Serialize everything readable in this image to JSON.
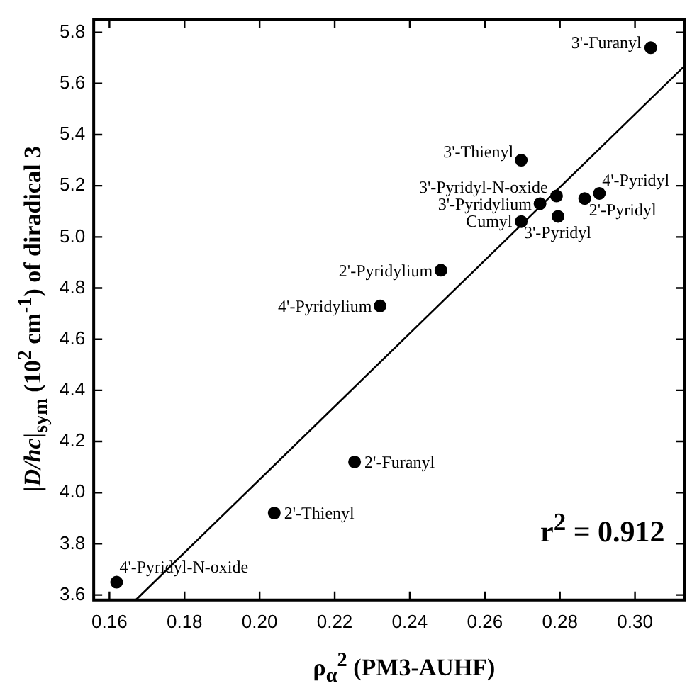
{
  "chart_data": {
    "type": "scatter",
    "xlabel": "ρ$_{α}$$^{2}$ (PM3-AUHF)",
    "ylabel": "|D/hc|$_{sym}$ (10$^{2}$ cm$^{-1}$) of diradical 3",
    "xlim": [
      0.1558,
      0.3133
    ],
    "xticks": [
      {
        "value": 0.16,
        "label": "0.16"
      },
      {
        "value": 0.18,
        "label": "0.18"
      },
      {
        "value": 0.2,
        "label": "0.20"
      },
      {
        "value": 0.22,
        "label": "0.22"
      },
      {
        "value": 0.24,
        "label": "0.24"
      },
      {
        "value": 0.26,
        "label": "0.26"
      },
      {
        "value": 0.28,
        "label": "0.28"
      },
      {
        "value": 0.3,
        "label": "0.30"
      }
    ],
    "ylim": [
      3.58,
      5.85
    ],
    "yticks": [
      {
        "value": 3.6,
        "label": "3.6"
      },
      {
        "value": 3.8,
        "label": "3.8"
      },
      {
        "value": 4,
        "label": "4.0"
      },
      {
        "value": 4.2,
        "label": "4.2"
      },
      {
        "value": 4.4,
        "label": "4.4"
      },
      {
        "value": 4.6,
        "label": "4.6"
      },
      {
        "value": 4.8,
        "label": "4.8"
      },
      {
        "value": 5,
        "label": "5.0"
      },
      {
        "value": 5.2,
        "label": "5.2"
      },
      {
        "value": 5.4,
        "label": "5.4"
      },
      {
        "value": 5.6,
        "label": "5.6"
      },
      {
        "value": 5.8,
        "label": "5.8"
      }
    ],
    "grid": false,
    "legend": false,
    "marker": "circle",
    "series": [
      {
        "type": "scatter",
        "color": "#000000",
        "x": [
          0.3042,
          0.2697,
          0.2791,
          0.2747,
          0.2697,
          0.2795,
          0.2905,
          0.2866,
          0.2483,
          0.2321,
          0.2253,
          0.2039,
          0.1619
        ],
        "values": [
          5.74,
          5.3,
          5.16,
          5.13,
          5.06,
          5.08,
          5.17,
          5.15,
          4.87,
          4.73,
          4.12,
          3.92,
          3.65
        ]
      },
      {
        "type": "line",
        "color": "#000000",
        "x": [
          0.167,
          0.3133
        ],
        "values": [
          3.58,
          5.67
        ],
        "marker": "none"
      }
    ],
    "annotations": [
      {
        "text": "3'-Furanyl",
        "x": 0.3042,
        "y": 5.74
      },
      {
        "text": "3'-Thienyl",
        "x": 0.2697,
        "y": 5.3
      },
      {
        "text": "3'-Pyridyl-N-oxide",
        "x": 0.2791,
        "y": 5.16
      },
      {
        "text": "3'-Pyridylium",
        "x": 0.2747,
        "y": 5.13
      },
      {
        "text": "Cumyl",
        "x": 0.2697,
        "y": 5.06
      },
      {
        "text": "3'-Pyridyl",
        "x": 0.2795,
        "y": 5.08
      },
      {
        "text": "4'-Pyridyl",
        "x": 0.2905,
        "y": 5.17
      },
      {
        "text": "2'-Pyridyl",
        "x": 0.2866,
        "y": 5.15
      },
      {
        "text": "2'-Pyridylium",
        "x": 0.2483,
        "y": 4.87
      },
      {
        "text": "4'-Pyridylium",
        "x": 0.2321,
        "y": 4.73
      },
      {
        "text": "2'-Furanyl",
        "x": 0.2253,
        "y": 4.12
      },
      {
        "text": "2'-Thienyl",
        "x": 0.2039,
        "y": 3.92
      },
      {
        "text": "4'-Pyridyl-N-oxide",
        "x": 0.1619,
        "y": 3.65
      },
      "r$^{2}$ = 0.912"
    ]
  }
}
